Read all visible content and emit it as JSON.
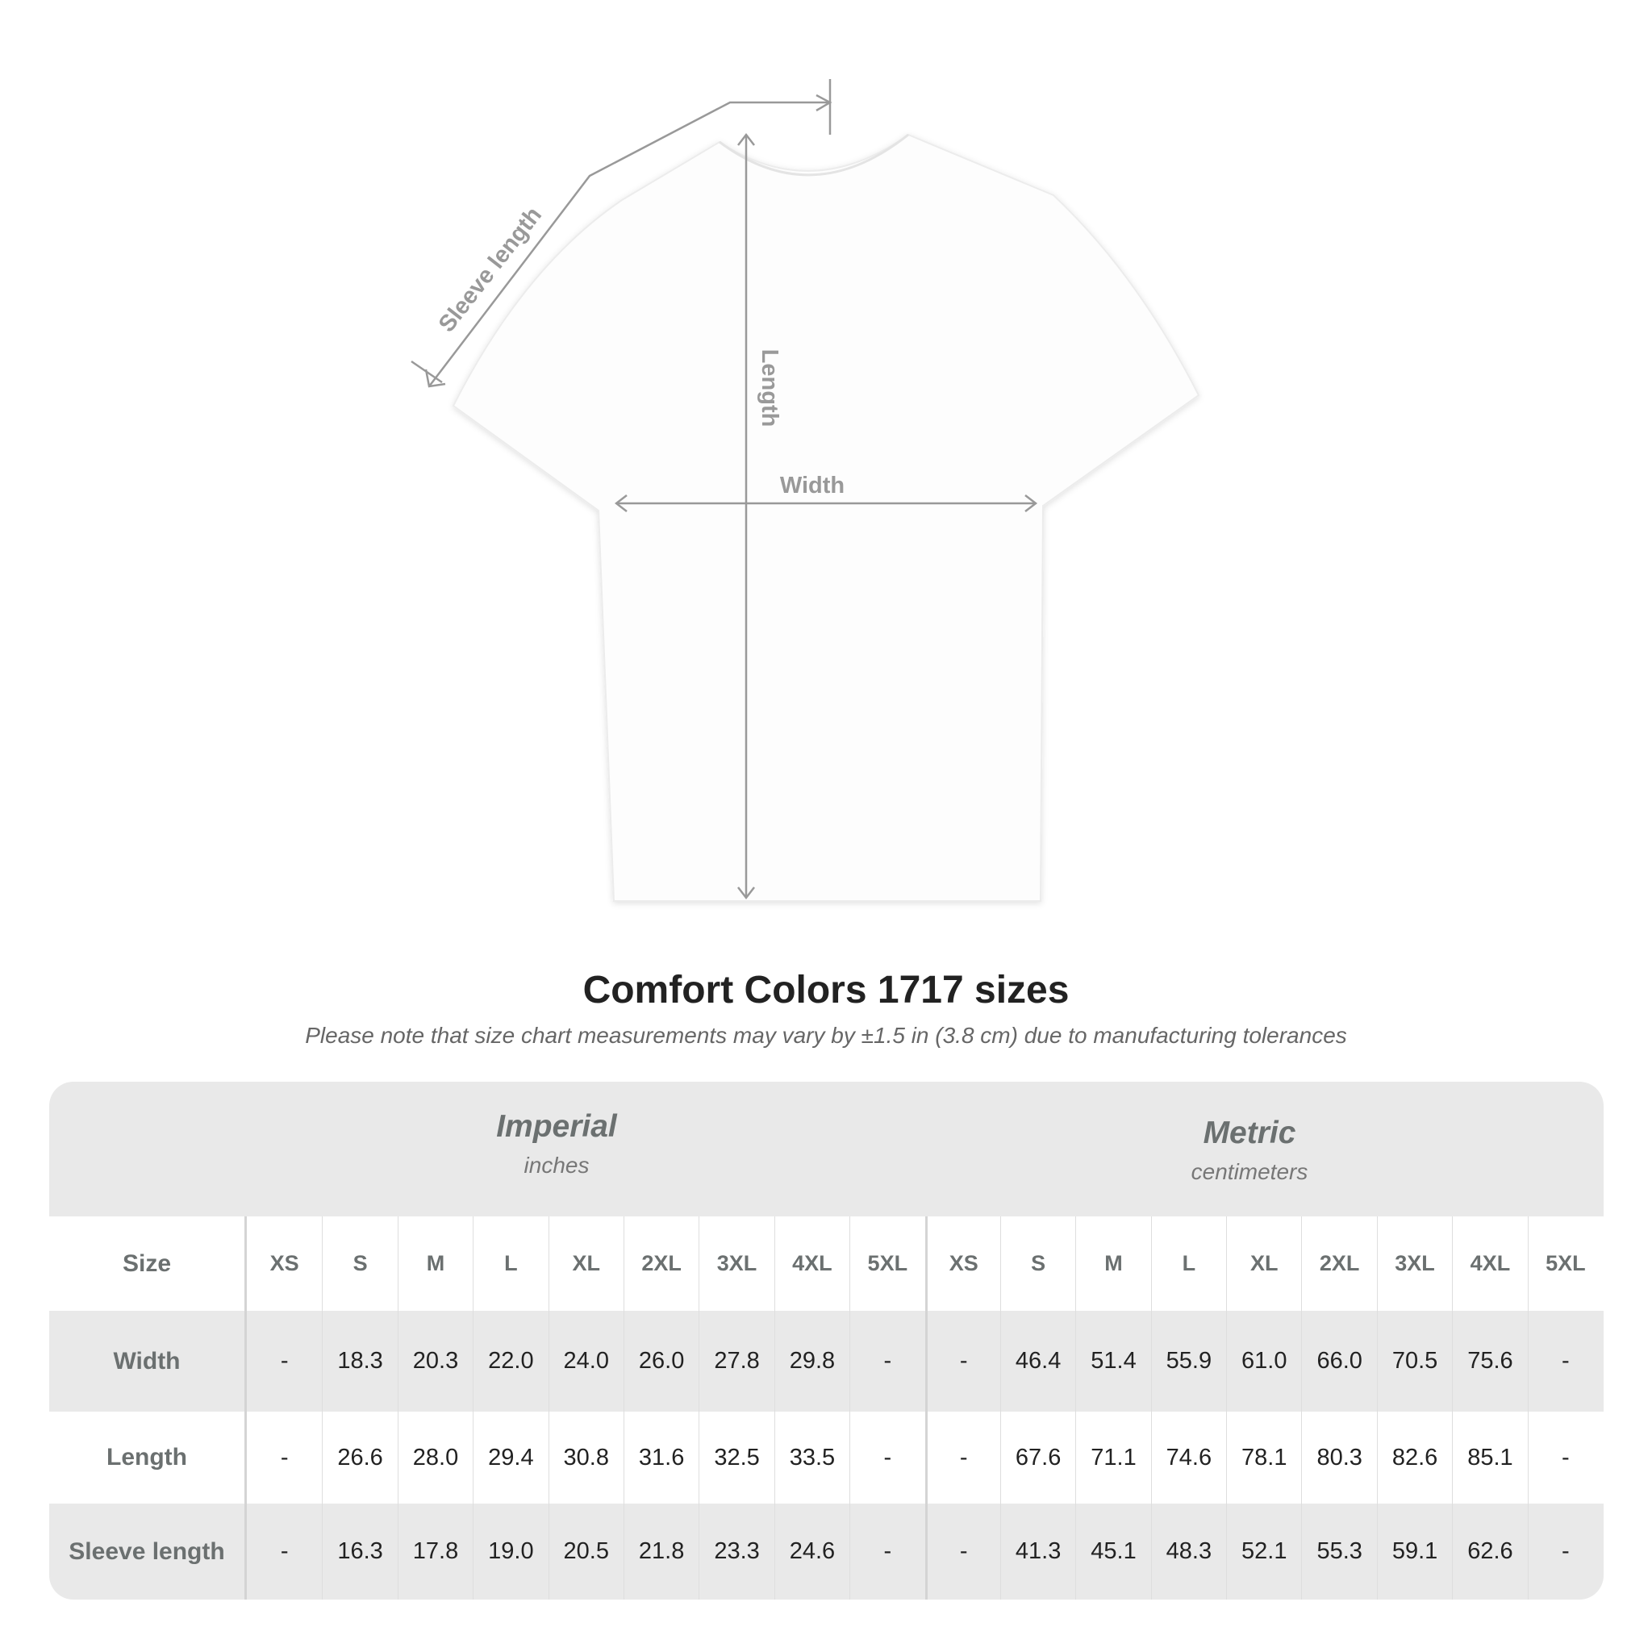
{
  "diagram": {
    "labels": {
      "sleeve": "Sleeve length",
      "length": "Length",
      "width": "Width"
    },
    "line_color": "#999999"
  },
  "title": "Comfort Colors 1717 sizes",
  "subtitle": "Please note that size chart measurements may vary by ±1.5 in (3.8 cm) due to manufacturing tolerances",
  "table": {
    "imperial": {
      "name": "Imperial",
      "unit": "inches"
    },
    "metric": {
      "name": "Metric",
      "unit": "centimeters"
    },
    "size_label": "Size",
    "sizes": [
      "XS",
      "S",
      "M",
      "L",
      "XL",
      "2XL",
      "3XL",
      "4XL",
      "5XL"
    ],
    "rows": [
      {
        "label": "Width",
        "imperial": [
          "-",
          "18.3",
          "20.3",
          "22.0",
          "24.0",
          "26.0",
          "27.8",
          "29.8",
          "-"
        ],
        "metric": [
          "-",
          "46.4",
          "51.4",
          "55.9",
          "61.0",
          "66.0",
          "70.5",
          "75.6",
          "-"
        ]
      },
      {
        "label": "Length",
        "imperial": [
          "-",
          "26.6",
          "28.0",
          "29.4",
          "30.8",
          "31.6",
          "32.5",
          "33.5",
          "-"
        ],
        "metric": [
          "-",
          "67.6",
          "71.1",
          "74.6",
          "78.1",
          "80.3",
          "82.6",
          "85.1",
          "-"
        ]
      },
      {
        "label": "Sleeve length",
        "imperial": [
          "-",
          "16.3",
          "17.8",
          "19.0",
          "20.5",
          "21.8",
          "23.3",
          "24.6",
          "-"
        ],
        "metric": [
          "-",
          "41.3",
          "45.1",
          "48.3",
          "52.1",
          "55.3",
          "59.1",
          "62.6",
          "-"
        ]
      }
    ],
    "colors": {
      "band": "#e9e9e9",
      "label_text": "#6b7070",
      "value_text": "#222222"
    }
  }
}
